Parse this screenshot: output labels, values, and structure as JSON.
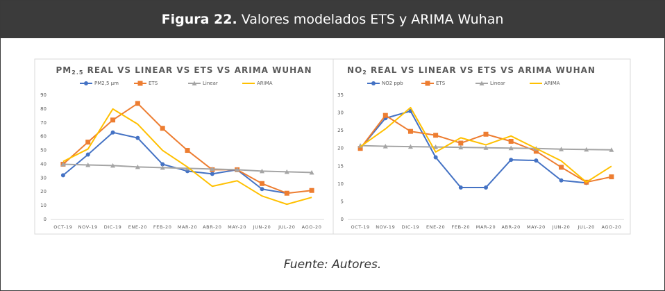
{
  "header": {
    "label": "Figura 22.",
    "title": "Valores modelados ETS y ARIMA Wuhan"
  },
  "chart_data": [
    {
      "type": "line",
      "title": {
        "main": "PM",
        "sub": "2.5",
        "rest": " REAL VS LINEAR VS ETS VS ARIMA WUHAN"
      },
      "categories": [
        "OCT-19",
        "NOV-19",
        "DIC-19",
        "ENE-20",
        "FEB-20",
        "MAR-20",
        "ABR-20",
        "MAY-20",
        "JUN-20",
        "JUL-20",
        "AGO-20"
      ],
      "ylim": [
        0,
        90
      ],
      "yticks": [
        0,
        10,
        20,
        30,
        40,
        50,
        60,
        70,
        80,
        90
      ],
      "series": [
        {
          "name": "PM2,5 µm",
          "color": "#4472c4",
          "marker": "circle",
          "values": [
            32,
            47,
            63,
            59,
            40,
            35,
            33,
            36,
            22,
            19,
            null
          ]
        },
        {
          "name": "ETS",
          "color": "#ed7d31",
          "marker": "square",
          "values": [
            40,
            56,
            72,
            84,
            66,
            50,
            36,
            36,
            26,
            19,
            21
          ]
        },
        {
          "name": "Linear",
          "color": "#a5a5a5",
          "marker": "triangle",
          "values": [
            40,
            39.5,
            39,
            38,
            37.5,
            37,
            36.5,
            36,
            35,
            34.5,
            34
          ]
        },
        {
          "name": "ARIMA",
          "color": "#ffc000",
          "marker": "none",
          "values": [
            42,
            51,
            80,
            69,
            50,
            38,
            24,
            28,
            17,
            11,
            16
          ]
        }
      ]
    },
    {
      "type": "line",
      "title": {
        "main": "NO",
        "sub": "2",
        "rest": " REAL VS LINEAR VS ETS VS ARIMA WUHAN"
      },
      "categories": [
        "OCT-19",
        "NOV-19",
        "DIC-19",
        "ENE-20",
        "FEB-20",
        "MAR-20",
        "ABR-20",
        "MAY-20",
        "JUN-20",
        "JUL-20",
        "AGO-20"
      ],
      "ylim": [
        0,
        35
      ],
      "yticks": [
        0,
        5,
        10,
        15,
        20,
        25,
        30,
        35
      ],
      "series": [
        {
          "name": "NO2 ppb",
          "color": "#4472c4",
          "marker": "circle",
          "values": [
            20,
            28.5,
            30.5,
            17.5,
            9,
            9,
            16.8,
            16.6,
            11,
            10.3,
            null
          ]
        },
        {
          "name": "ETS",
          "color": "#ed7d31",
          "marker": "square",
          "values": [
            20,
            29.3,
            24.8,
            23.7,
            21.5,
            24,
            22,
            19.2,
            14.7,
            10.5,
            12
          ]
        },
        {
          "name": "Linear",
          "color": "#a5a5a5",
          "marker": "triangle",
          "values": [
            20.8,
            20.6,
            20.5,
            20.4,
            20.3,
            20.2,
            20.1,
            20,
            19.8,
            19.7,
            19.6
          ]
        },
        {
          "name": "ARIMA",
          "color": "#ffc000",
          "marker": "none",
          "values": [
            20.5,
            25.5,
            31.5,
            19,
            23,
            21,
            23.5,
            20,
            16.5,
            10.5,
            15
          ]
        }
      ]
    }
  ],
  "footer": "Fuente: Autores."
}
